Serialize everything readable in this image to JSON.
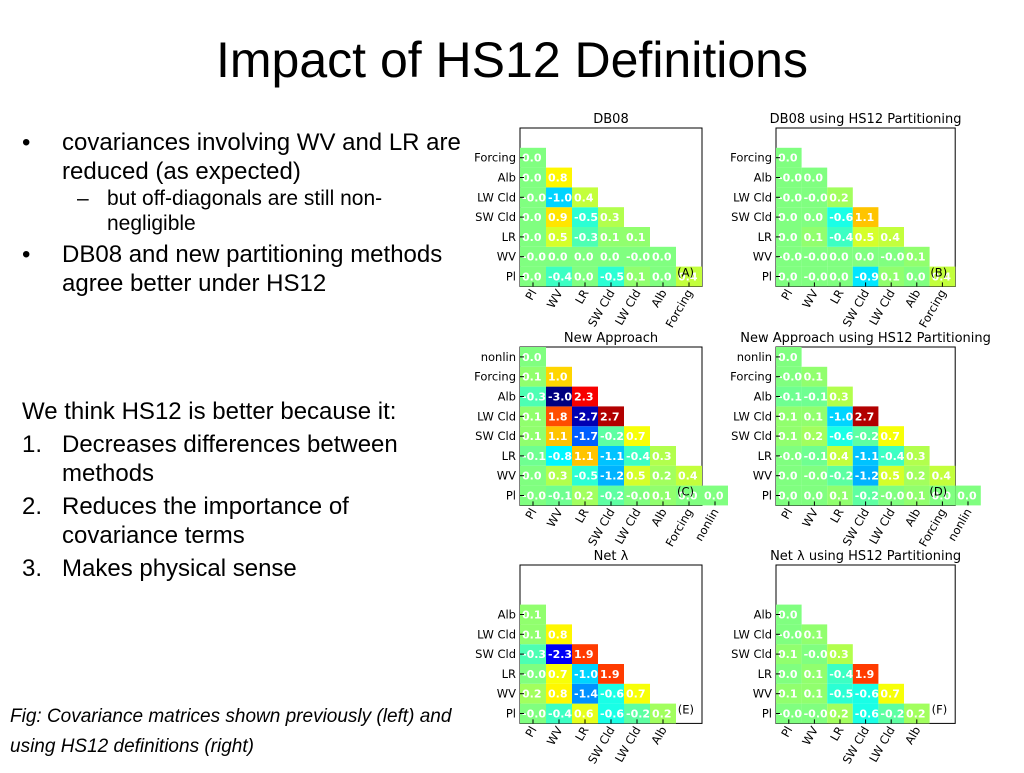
{
  "slide": {
    "title": "Impact of HS12 Definitions",
    "bullets": [
      {
        "level": 1,
        "marker": "•",
        "text": "covariances involving WV and LR are reduced (as expected)"
      },
      {
        "level": 2,
        "marker": "–",
        "text": "but off-diagonals are still non-negligible"
      },
      {
        "level": 1,
        "marker": "•",
        "text": "DB08 and new partitioning methods agree better under HS12"
      }
    ],
    "reasons_intro": "We think HS12 is better because it:",
    "reasons": [
      {
        "n": "1.",
        "text": "Decreases differences between methods"
      },
      {
        "n": "2.",
        "text": "Reduces the importance of covariance terms"
      },
      {
        "n": "3.",
        "text": "Makes physical sense"
      }
    ],
    "caption": "Fig: Covariance matrices shown previously (left) and using HS12 definitions (right)"
  },
  "chart_data": [
    {
      "type": "heatmap",
      "title": "DB08",
      "panel": "(A)",
      "labels": [
        "Pl",
        "WV",
        "LR",
        "SW Cld",
        "LW Cld",
        "Alb",
        "Forcing"
      ],
      "rows": [
        [
          "0.0",
          "-0.4",
          "0.0",
          "-0.5",
          "0.1",
          "0.0",
          "0.4"
        ],
        [
          "-0.0",
          "0.0",
          "0.0",
          "0.0",
          "-0.0",
          "0.0"
        ],
        [
          "0.0",
          "0.5",
          "-0.3",
          "0.1",
          "0.1"
        ],
        [
          "0.0",
          "0.9",
          "-0.5",
          "0.3"
        ],
        [
          "-0.0",
          "-1.0",
          "0.4"
        ],
        [
          "0.0",
          "0.8"
        ],
        [
          "0.0"
        ]
      ]
    },
    {
      "type": "heatmap",
      "title": "DB08 using HS12 Partitioning",
      "panel": "(B)",
      "labels": [
        "Pl",
        "WV",
        "LR",
        "SW Cld",
        "LW Cld",
        "Alb",
        "Forcing"
      ],
      "rows": [
        [
          "0.0",
          "-0.0",
          "0.0",
          "-0.9",
          "0.1",
          "0.0",
          "0.4"
        ],
        [
          "-0.0",
          "-0.0",
          "0.0",
          "0.0",
          "-0.0",
          "0.1"
        ],
        [
          "0.0",
          "0.1",
          "-0.4",
          "0.5",
          "0.4"
        ],
        [
          "0.0",
          "0.0",
          "-0.6",
          "1.1"
        ],
        [
          "-0.0",
          "-0.0",
          "0.2"
        ],
        [
          "-0.0",
          "0.0"
        ],
        [
          "0.0"
        ]
      ]
    },
    {
      "type": "heatmap",
      "title": "New Approach",
      "panel": "(C)",
      "labels": [
        "Pl",
        "WV",
        "LR",
        "SW Cld",
        "LW Cld",
        "Alb",
        "Forcing",
        "nonlin"
      ],
      "rows": [
        [
          "-0.0",
          "-0.1",
          "0.2",
          "-0.2",
          "-0.0",
          "0.1",
          "0.0",
          "0.0"
        ],
        [
          "0.0",
          "0.3",
          "-0.5",
          "-1.2",
          "0.5",
          "0.2",
          "0.4"
        ],
        [
          "-0.1",
          "-0.8",
          "1.1",
          "-1.1",
          "-0.4",
          "0.3"
        ],
        [
          "0.1",
          "1.1",
          "-1.7",
          "-0.2",
          "0.7"
        ],
        [
          "0.1",
          "1.8",
          "-2.7",
          "2.7"
        ],
        [
          "-0.3",
          "-3.0",
          "2.3"
        ],
        [
          "0.1",
          "1.0"
        ],
        [
          "0.0"
        ]
      ]
    },
    {
      "type": "heatmap",
      "title": "New Approach using HS12 Partitioning",
      "panel": "(D)",
      "labels": [
        "Pl",
        "WV",
        "LR",
        "SW Cld",
        "LW Cld",
        "Alb",
        "Forcing",
        "nonlin"
      ],
      "rows": [
        [
          "0.0",
          "0.0",
          "0.1",
          "-0.2",
          "-0.0",
          "0.1",
          "0.0",
          "0.0"
        ],
        [
          "0.0",
          "-0.0",
          "-0.2",
          "-1.2",
          "0.5",
          "0.2",
          "0.4"
        ],
        [
          "-0.0",
          "-0.1",
          "0.4",
          "-1.1",
          "-0.4",
          "0.3"
        ],
        [
          "0.1",
          "0.2",
          "-0.6",
          "-0.2",
          "0.7"
        ],
        [
          "0.1",
          "0.1",
          "-1.0",
          "2.7"
        ],
        [
          "-0.1",
          "-0.1",
          "0.3"
        ],
        [
          "-0.0",
          "0.1"
        ],
        [
          "0.0"
        ]
      ]
    },
    {
      "type": "heatmap",
      "title": "Net λ",
      "panel": "(E)",
      "labels": [
        "Pl",
        "WV",
        "LR",
        "SW Cld",
        "LW Cld",
        "Alb"
      ],
      "rows": [
        [
          "-0.0",
          "-0.4",
          "0.6",
          "-0.6",
          "-0.2",
          "0.2"
        ],
        [
          "0.2",
          "0.8",
          "-1.4",
          "-0.6",
          "0.7"
        ],
        [
          "-0.0",
          "0.7",
          "-1.0",
          "1.9"
        ],
        [
          "-0.3",
          "-2.3",
          "1.9"
        ],
        [
          "0.1",
          "0.8"
        ],
        [
          "0.1"
        ]
      ]
    },
    {
      "type": "heatmap",
      "title": "Net λ using HS12 Partitioning",
      "panel": "(F)",
      "labels": [
        "Pl",
        "WV",
        "LR",
        "SW Cld",
        "LW Cld",
        "Alb"
      ],
      "rows": [
        [
          "-0.0",
          "-0.0",
          "0.2",
          "-0.6",
          "-0.2",
          "0.2"
        ],
        [
          "0.1",
          "0.1",
          "-0.5",
          "-0.6",
          "0.7"
        ],
        [
          "0.0",
          "0.1",
          "-0.4",
          "1.9"
        ],
        [
          "0.1",
          "-0.0",
          "0.3"
        ],
        [
          "-0.0",
          "0.1"
        ],
        [
          "0.0"
        ]
      ]
    }
  ]
}
